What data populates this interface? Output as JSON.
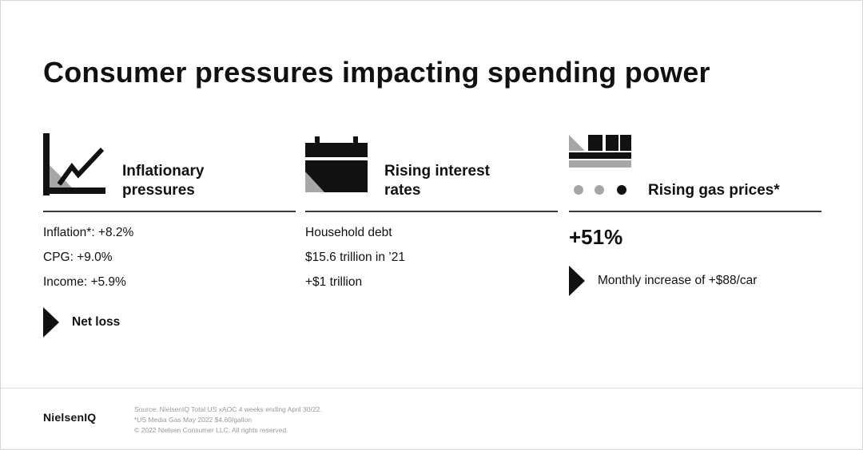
{
  "title": "Consumer pressures impacting spending power",
  "columns": [
    {
      "icon": "rising-chart-icon",
      "heading_line1": "Inflationary",
      "heading_line2": "pressures",
      "lines": [
        "Inflation*: +8.2%",
        "CPG: +9.0%",
        "Income: +5.9%"
      ],
      "callout": "Net loss"
    },
    {
      "icon": "calendar-icon",
      "heading_line1": "Rising interest",
      "heading_line2": "rates",
      "lines": [
        "Household debt",
        "$15.6 trillion in ’21",
        "+$1 trillion"
      ]
    },
    {
      "icon": "car-train-icon",
      "heading_line1": "Rising gas prices*",
      "big": "+51%",
      "callout": "Monthly increase of +$88/car"
    }
  ],
  "footer": {
    "logo": "NielsenIQ",
    "source_line1": "Source: NielsenIQ Total US xAOC 4 weeks ending April 30/22.",
    "source_line2": "*US Media Gas May 2022 $4.60/gallon",
    "source_line3": "© 2022 Nielsen Consumer LLC. All rights reserved."
  },
  "colors": {
    "text": "#111111",
    "accent_gray": "#a6a6a6",
    "muted": "#9a9a9a"
  }
}
